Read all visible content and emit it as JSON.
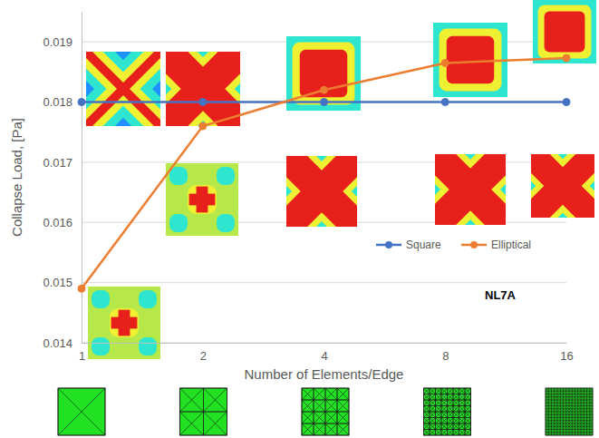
{
  "chart_data": {
    "type": "line",
    "x_label": "Number of Elements/Edge",
    "y_label": "Collapse Load, [Pa]",
    "annotation": "NL7A",
    "categories": [
      "1",
      "2",
      "4",
      "8",
      "16"
    ],
    "series": [
      {
        "name": "Square",
        "color": "#4472c4",
        "marker": "circle",
        "line_style": "solid",
        "values": [
          0.018,
          0.018,
          0.018,
          0.018,
          0.018
        ]
      },
      {
        "name": "Elliptical",
        "color": "#ed7d31",
        "marker": "circle",
        "line_style": "solid",
        "values": [
          0.0149,
          0.0176,
          0.0182,
          0.01865,
          0.01873
        ]
      }
    ],
    "ylim": [
      0.014,
      0.0195
    ],
    "yticks": [
      0.014,
      0.015,
      0.016,
      0.017,
      0.018,
      0.019
    ],
    "grid": true,
    "legend": "right"
  }
}
